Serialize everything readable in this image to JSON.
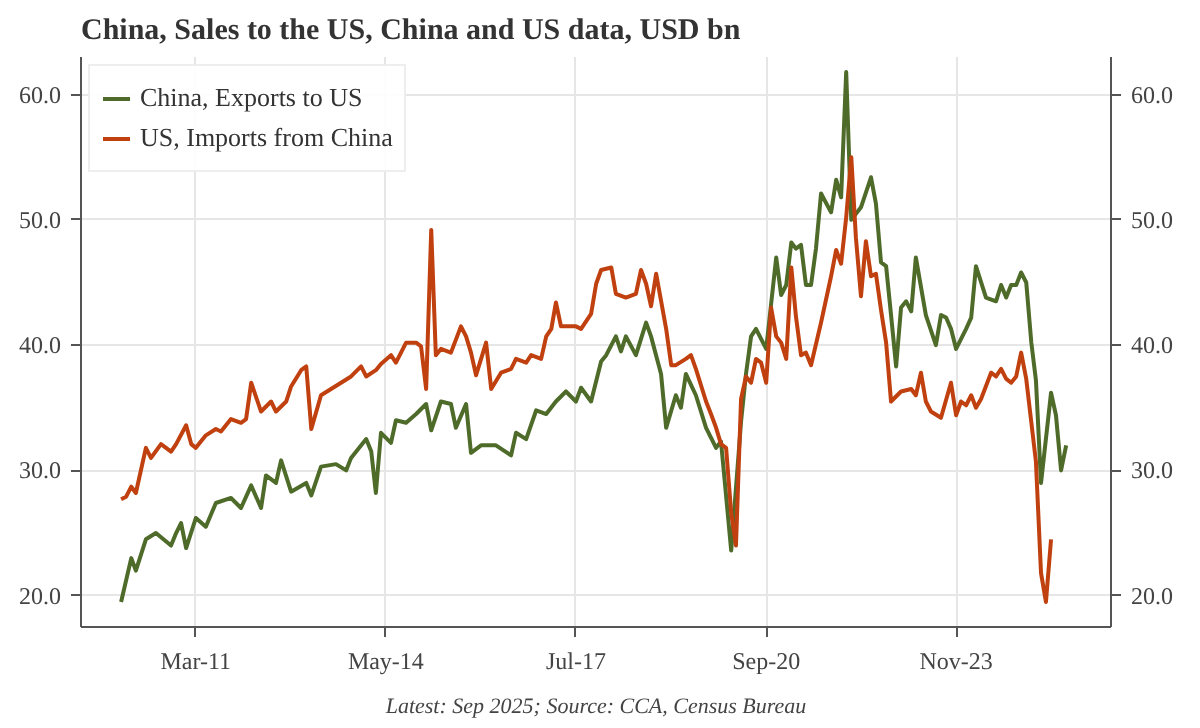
{
  "chart_data": {
    "type": "line",
    "title": "China, Sales to the US, China and US data, USD bn",
    "annotations": [
      "Latest: Sep 2025; Source: CCA, Census Bureau"
    ],
    "xlim": [
      "2009-04",
      "2026-06"
    ],
    "xticks": [
      {
        "value": "2011-03",
        "label": "Mar-11"
      },
      {
        "value": "2014-05",
        "label": "May-14"
      },
      {
        "value": "2017-07",
        "label": "Jul-17"
      },
      {
        "value": "2020-09",
        "label": "Sep-20"
      },
      {
        "value": "2023-11",
        "label": "Nov-23"
      }
    ],
    "ylim": [
      17.5,
      63
    ],
    "yticks": [
      {
        "value": 20,
        "label": "20.0"
      },
      {
        "value": 30,
        "label": "30.0"
      },
      {
        "value": 40,
        "label": "40.0"
      },
      {
        "value": 50,
        "label": "50.0"
      },
      {
        "value": 60,
        "label": "60.0"
      }
    ],
    "y2lim": [
      17.5,
      63
    ],
    "y2ticks": [
      {
        "value": 20,
        "label": "20.0"
      },
      {
        "value": 30,
        "label": "30.0"
      },
      {
        "value": 40,
        "label": "40.0"
      },
      {
        "value": 50,
        "label": "50.0"
      },
      {
        "value": 60,
        "label": "60.0"
      }
    ],
    "grid": true,
    "legend": "top left",
    "marker": "none",
    "line_style": "solid",
    "series": [
      {
        "name": "China, Exports to US",
        "color": "#4e6b2a",
        "x": [
          "2009-12",
          "2010-02",
          "2010-03",
          "2010-05",
          "2010-07",
          "2010-10",
          "2010-11",
          "2010-12",
          "2011-01",
          "2011-03",
          "2011-05",
          "2011-07",
          "2011-10",
          "2011-12",
          "2012-02",
          "2012-04",
          "2012-05",
          "2012-07",
          "2012-08",
          "2012-10",
          "2013-01",
          "2013-02",
          "2013-04",
          "2013-07",
          "2013-09",
          "2013-10",
          "2014-01",
          "2014-02",
          "2014-03",
          "2014-04",
          "2014-06",
          "2014-07",
          "2014-09",
          "2014-11",
          "2015-01",
          "2015-02",
          "2015-04",
          "2015-06",
          "2015-07",
          "2015-09",
          "2015-10",
          "2015-12",
          "2016-03",
          "2016-06",
          "2016-07",
          "2016-09",
          "2016-11",
          "2017-01",
          "2017-03",
          "2017-05",
          "2017-07",
          "2017-08",
          "2017-10",
          "2017-12",
          "2018-01",
          "2018-03",
          "2018-04",
          "2018-05",
          "2018-07",
          "2018-09",
          "2018-10",
          "2018-12",
          "2019-01",
          "2019-03",
          "2019-04",
          "2019-05",
          "2019-07",
          "2019-09",
          "2019-11",
          "2019-12",
          "2020-02",
          "2020-04",
          "2020-05",
          "2020-06",
          "2020-07",
          "2020-09",
          "2020-11",
          "2020-12",
          "2021-01",
          "2021-02",
          "2021-03",
          "2021-04",
          "2021-05",
          "2021-06",
          "2021-07",
          "2021-08",
          "2021-10",
          "2021-11",
          "2021-12",
          "2022-01",
          "2022-02",
          "2022-04",
          "2022-06",
          "2022-07",
          "2022-08",
          "2022-09",
          "2022-10",
          "2022-11",
          "2022-12",
          "2023-01",
          "2023-02",
          "2023-03",
          "2023-05",
          "2023-07",
          "2023-08",
          "2023-09",
          "2023-10",
          "2023-11",
          "2024-01",
          "2024-02",
          "2024-03",
          "2024-05",
          "2024-07",
          "2024-08",
          "2024-09",
          "2024-10",
          "2024-11",
          "2024-12",
          "2025-01",
          "2025-02",
          "2025-03",
          "2025-04",
          "2025-06",
          "2025-07",
          "2025-08",
          "2025-09"
        ],
        "values": [
          19.5,
          23,
          22,
          24.5,
          25,
          24,
          25,
          25.8,
          23.8,
          26.2,
          25.5,
          27.4,
          27.8,
          27,
          28.8,
          27,
          29.6,
          29,
          30.8,
          28.3,
          29,
          28,
          30.3,
          30.5,
          30,
          31,
          32.5,
          31.5,
          28.2,
          33,
          32.2,
          34,
          33.8,
          34.5,
          35.3,
          33.2,
          35.5,
          35.3,
          33.4,
          35.3,
          31.4,
          32,
          32,
          31.2,
          33,
          32.5,
          34.8,
          34.5,
          35.5,
          36.3,
          35.5,
          36.6,
          35.5,
          38.7,
          39.2,
          40.7,
          39.5,
          40.7,
          39.2,
          41.8,
          40.7,
          37.7,
          33.4,
          36,
          35,
          37.7,
          36,
          33.4,
          31.8,
          32.3,
          23.6,
          33.9,
          37.7,
          40.7,
          41.3,
          39.7,
          47,
          44,
          44.8,
          48.2,
          47.7,
          48,
          44.8,
          44.8,
          47.7,
          52.1,
          50.6,
          53.2,
          51.8,
          61.8,
          50,
          51,
          53.4,
          51.3,
          46.6,
          46.3,
          42.4,
          38.3,
          43,
          43.5,
          42.7,
          47,
          42.4,
          40,
          42.4,
          42.2,
          41.3,
          39.7,
          41.3,
          42.2,
          46.3,
          43.8,
          43.5,
          44.8,
          43.8,
          44.8,
          44.8,
          45.8,
          45,
          40.2,
          37.2,
          29,
          36.2,
          34.4,
          30,
          32
        ]
      },
      {
        "name": "US, Imports from China",
        "color": "#c0410f",
        "x": [
          "2009-12",
          "2010-01",
          "2010-02",
          "2010-03",
          "2010-05",
          "2010-06",
          "2010-08",
          "2010-10",
          "2010-11",
          "2011-01",
          "2011-02",
          "2011-03",
          "2011-05",
          "2011-07",
          "2011-08",
          "2011-10",
          "2011-12",
          "2012-01",
          "2012-02",
          "2012-04",
          "2012-06",
          "2012-07",
          "2012-09",
          "2012-10",
          "2012-12",
          "2013-01",
          "2013-02",
          "2013-04",
          "2013-06",
          "2013-08",
          "2013-10",
          "2013-12",
          "2014-01",
          "2014-03",
          "2014-04",
          "2014-06",
          "2014-07",
          "2014-09",
          "2014-11",
          "2014-12",
          "2015-01",
          "2015-02",
          "2015-03",
          "2015-04",
          "2015-06",
          "2015-08",
          "2015-09",
          "2015-10",
          "2015-11",
          "2016-01",
          "2016-02",
          "2016-04",
          "2016-06",
          "2016-07",
          "2016-09",
          "2016-10",
          "2016-12",
          "2017-01",
          "2017-02",
          "2017-03",
          "2017-04",
          "2017-07",
          "2017-08",
          "2017-10",
          "2017-11",
          "2017-12",
          "2018-02",
          "2018-03",
          "2018-05",
          "2018-07",
          "2018-08",
          "2018-09",
          "2018-10",
          "2018-11",
          "2019-01",
          "2019-02",
          "2019-03",
          "2019-05",
          "2019-06",
          "2019-07",
          "2019-09",
          "2019-10",
          "2019-11",
          "2019-12",
          "2020-01",
          "2020-02",
          "2020-03",
          "2020-04",
          "2020-05",
          "2020-06",
          "2020-07",
          "2020-08",
          "2020-09",
          "2020-10",
          "2020-11",
          "2020-12",
          "2021-01",
          "2021-02",
          "2021-03",
          "2021-04",
          "2021-05",
          "2021-06",
          "2021-08",
          "2021-10",
          "2021-11",
          "2021-12",
          "2022-01",
          "2022-02",
          "2022-03",
          "2022-04",
          "2022-05",
          "2022-06",
          "2022-07",
          "2022-08",
          "2022-09",
          "2022-10",
          "2022-12",
          "2023-02",
          "2023-03",
          "2023-04",
          "2023-05",
          "2023-06",
          "2023-08",
          "2023-10",
          "2023-11",
          "2023-12",
          "2024-01",
          "2024-02",
          "2024-03",
          "2024-04",
          "2024-06",
          "2024-07",
          "2024-08",
          "2024-09",
          "2024-10",
          "2024-11",
          "2024-12",
          "2025-01",
          "2025-03",
          "2025-04",
          "2025-05",
          "2025-06"
        ],
        "values": [
          27.7,
          27.9,
          28.7,
          28.2,
          31.8,
          31,
          32.1,
          31.5,
          32.1,
          33.6,
          32.1,
          31.8,
          32.8,
          33.3,
          33.1,
          34.1,
          33.8,
          34.1,
          37,
          34.7,
          35.5,
          34.7,
          35.5,
          36.7,
          38,
          38.3,
          33.3,
          36,
          36.5,
          37,
          37.5,
          38.3,
          37.5,
          38,
          38.5,
          39.2,
          38.6,
          40.2,
          40.2,
          39.9,
          36.5,
          49.2,
          39.2,
          39.7,
          39.4,
          41.5,
          40.7,
          39.4,
          37.6,
          40.2,
          36.5,
          37.8,
          38.1,
          38.9,
          38.6,
          39.2,
          38.9,
          40.7,
          41.3,
          43.4,
          41.5,
          41.5,
          41.3,
          42.5,
          44.9,
          46,
          46.2,
          44.1,
          43.8,
          44.1,
          46,
          44.9,
          43.1,
          45.7,
          41.3,
          38.4,
          38.4,
          38.9,
          39.2,
          38.1,
          35.5,
          34.5,
          33.4,
          32.1,
          31.8,
          26.6,
          24,
          35.7,
          37.5,
          37,
          38.9,
          38.6,
          37,
          43,
          40.7,
          40.2,
          38.9,
          46.2,
          42.3,
          39.2,
          39.4,
          38.4,
          41.8,
          45.5,
          47.6,
          46.5,
          50.2,
          55,
          48.6,
          43.9,
          48.3,
          45.5,
          45.7,
          42.8,
          40.2,
          35.5,
          36.3,
          36.5,
          36,
          37.8,
          35.5,
          34.7,
          34.2,
          37,
          34.4,
          35.5,
          35.2,
          36,
          35,
          35.7,
          37.8,
          37.5,
          38.1,
          37.3,
          37,
          37.5,
          39.4,
          37.3,
          30.7,
          21.8,
          19.5,
          24.5
        ]
      }
    ]
  }
}
